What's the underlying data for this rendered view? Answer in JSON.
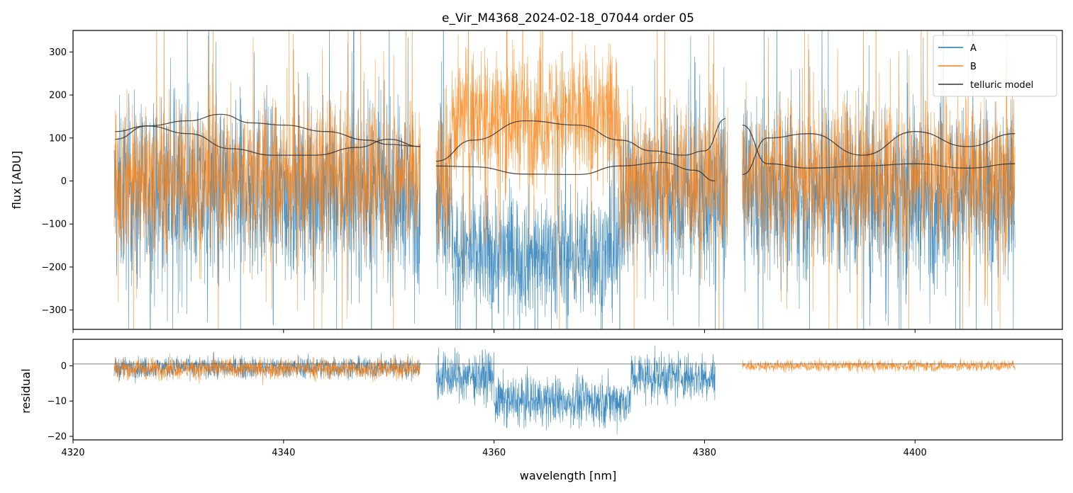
{
  "chart_data": {
    "type": "line",
    "title": "e_Vir_M4368_2024-02-18_07044  order 05",
    "xlabel": "wavelength [nm]",
    "x_ticks": [
      4320,
      4340,
      4360,
      4380,
      4400
    ],
    "xlim": [
      4320,
      4414
    ],
    "colors": {
      "A": "#1f77b4",
      "B": "#ff7f0e",
      "telluric": "#333333"
    },
    "legend": {
      "placement": "top-right",
      "entries": [
        "A",
        "B",
        "telluric model"
      ]
    },
    "panels": [
      {
        "name": "flux",
        "ylabel": "flux [ADU]",
        "ylim": [
          -345,
          350
        ],
        "y_ticks": [
          -300,
          -200,
          -100,
          0,
          100,
          200,
          300
        ],
        "y_tick_labels": [
          "−300",
          "−200",
          "−100",
          "0",
          "100",
          "200",
          "300"
        ],
        "segments": [
          [
            4323.9,
            4353.0
          ],
          [
            4354.5,
            4382.2
          ],
          [
            4383.6,
            4409.5
          ]
        ],
        "series": [
          {
            "name": "A",
            "noise_amplitude": 170,
            "baseline": -30
          },
          {
            "name": "B",
            "noise_amplitude": 150,
            "baseline": 10
          }
        ],
        "telluric_models": [
          {
            "name": "telluric model",
            "points": [
              [
                4324,
                97
              ],
              [
                4327,
                128
              ],
              [
                4331,
                140
              ],
              [
                4334,
                155
              ],
              [
                4337,
                135
              ],
              [
                4340,
                130
              ],
              [
                4344,
                115
              ],
              [
                4348,
                95
              ],
              [
                4350,
                85
              ],
              [
                4353,
                80
              ]
            ]
          },
          {
            "name": "telluric model",
            "points": [
              [
                4324,
                115
              ],
              [
                4327,
                128
              ],
              [
                4331,
                110
              ],
              [
                4335,
                75
              ],
              [
                4339,
                60
              ],
              [
                4343,
                60
              ],
              [
                4347,
                78
              ],
              [
                4350,
                97
              ],
              [
                4353,
                80
              ]
            ]
          },
          {
            "name": "telluric model",
            "points": [
              [
                4354.5,
                46
              ],
              [
                4358,
                95
              ],
              [
                4363,
                140
              ],
              [
                4368,
                130
              ],
              [
                4372,
                95
              ],
              [
                4375,
                70
              ],
              [
                4378,
                60
              ],
              [
                4380,
                70
              ],
              [
                4382,
                145
              ]
            ]
          },
          {
            "name": "telluric model",
            "points": [
              [
                4354.5,
                35
              ],
              [
                4358,
                33
              ],
              [
                4363,
                16
              ],
              [
                4368,
                15
              ],
              [
                4372,
                35
              ],
              [
                4376,
                43
              ],
              [
                4379,
                25
              ],
              [
                4381,
                0
              ]
            ]
          },
          {
            "name": "telluric model",
            "points": [
              [
                4383.6,
                130
              ],
              [
                4386,
                40
              ],
              [
                4390,
                30
              ],
              [
                4395,
                35
              ],
              [
                4400,
                40
              ],
              [
                4405,
                30
              ],
              [
                4409.5,
                40
              ]
            ]
          },
          {
            "name": "telluric model",
            "points": [
              [
                4383.6,
                15
              ],
              [
                4386,
                100
              ],
              [
                4390,
                110
              ],
              [
                4395,
                60
              ],
              [
                4400,
                115
              ],
              [
                4405,
                80
              ],
              [
                4409.5,
                110
              ]
            ]
          }
        ]
      },
      {
        "name": "residual",
        "ylabel": "residual",
        "ylim": [
          -21,
          7.5
        ],
        "y_ticks": [
          -20,
          -10,
          0
        ],
        "y_tick_labels": [
          "−20",
          "−10",
          "0"
        ],
        "reference_line": 0.5,
        "series": [
          {
            "name": "A",
            "segments": [
              [
                4323.9,
                4353.0
              ],
              [
                4354.5,
                4381.0
              ]
            ]
          },
          {
            "name": "B",
            "segments": [
              [
                4323.9,
                4353.0
              ],
              [
                4383.6,
                4409.5
              ]
            ]
          }
        ]
      }
    ]
  }
}
